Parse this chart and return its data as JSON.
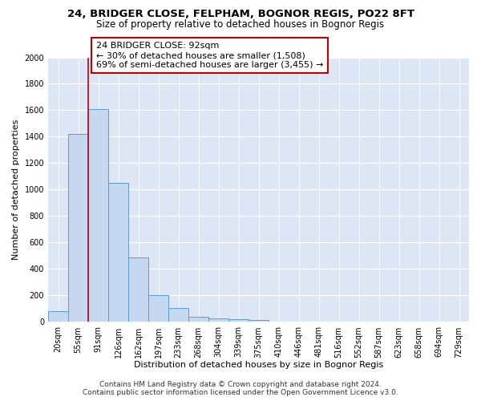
{
  "title1": "24, BRIDGER CLOSE, FELPHAM, BOGNOR REGIS, PO22 8FT",
  "title2": "Size of property relative to detached houses in Bognor Regis",
  "xlabel": "Distribution of detached houses by size in Bognor Regis",
  "ylabel": "Number of detached properties",
  "bin_labels": [
    "20sqm",
    "55sqm",
    "91sqm",
    "126sqm",
    "162sqm",
    "197sqm",
    "233sqm",
    "268sqm",
    "304sqm",
    "339sqm",
    "375sqm",
    "410sqm",
    "446sqm",
    "481sqm",
    "516sqm",
    "552sqm",
    "587sqm",
    "623sqm",
    "658sqm",
    "694sqm",
    "729sqm"
  ],
  "bar_heights": [
    80,
    1420,
    1610,
    1050,
    490,
    205,
    105,
    40,
    28,
    20,
    15,
    0,
    0,
    0,
    0,
    0,
    0,
    0,
    0,
    0,
    0
  ],
  "bar_color": "#c5d8f0",
  "bar_edge_color": "#5b9bd5",
  "background_color": "#dce6f5",
  "grid_color": "#ffffff",
  "vline_color": "#c00000",
  "annotation_text": "24 BRIDGER CLOSE: 92sqm\n← 30% of detached houses are smaller (1,508)\n69% of semi-detached houses are larger (3,455) →",
  "annotation_box_color": "#ffffff",
  "annotation_box_edge": "#c00000",
  "ylim": [
    0,
    2000
  ],
  "yticks": [
    0,
    200,
    400,
    600,
    800,
    1000,
    1200,
    1400,
    1600,
    1800,
    2000
  ],
  "footer_text": "Contains HM Land Registry data © Crown copyright and database right 2024.\nContains public sector information licensed under the Open Government Licence v3.0.",
  "title1_fontsize": 9.5,
  "title2_fontsize": 8.5,
  "xlabel_fontsize": 8,
  "ylabel_fontsize": 8,
  "tick_fontsize": 7,
  "annotation_fontsize": 8,
  "footer_fontsize": 6.5,
  "fig_bg": "#ffffff"
}
